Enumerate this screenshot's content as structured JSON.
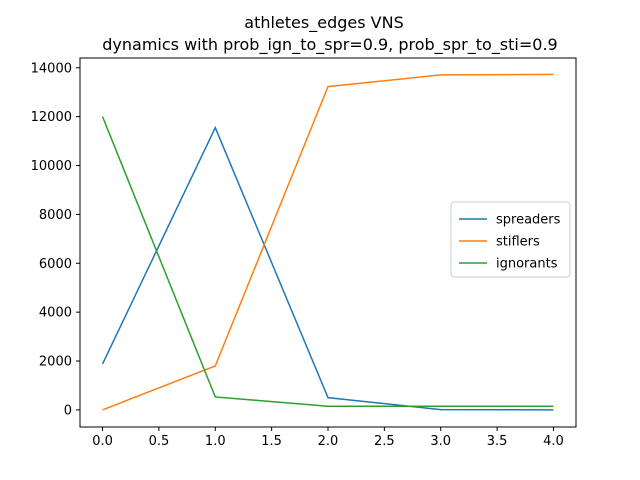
{
  "chart_data": {
    "type": "line",
    "title": "athletes_edges VNS",
    "subtitle": "dynamics with prob_ign_to_spr=0.9, prob_spr_to_sti=0.9",
    "xlabel": "",
    "ylabel": "",
    "x": [
      0,
      1,
      2,
      3,
      4
    ],
    "xlim": [
      -0.2,
      4.2
    ],
    "ylim": [
      -700,
      14400
    ],
    "xticks": [
      0.0,
      0.5,
      1.0,
      1.5,
      2.0,
      2.5,
      3.0,
      3.5,
      4.0
    ],
    "xtick_labels": [
      "0.0",
      "0.5",
      "1.0",
      "1.5",
      "2.0",
      "2.5",
      "3.0",
      "3.5",
      "4.0"
    ],
    "yticks": [
      0,
      2000,
      4000,
      6000,
      8000,
      10000,
      12000,
      14000
    ],
    "ytick_labels": [
      "0",
      "2000",
      "4000",
      "6000",
      "8000",
      "10000",
      "12000",
      "14000"
    ],
    "grid": false,
    "legend_position": "center-right",
    "series": [
      {
        "name": "spreaders",
        "color": "#1f77b4",
        "values": [
          1880,
          11550,
          500,
          10,
          0
        ]
      },
      {
        "name": "stiflers",
        "color": "#ff7f0e",
        "values": [
          0,
          1800,
          13230,
          13710,
          13730
        ]
      },
      {
        "name": "ignorants",
        "color": "#2ca02c",
        "values": [
          12000,
          530,
          150,
          150,
          150
        ]
      }
    ]
  }
}
